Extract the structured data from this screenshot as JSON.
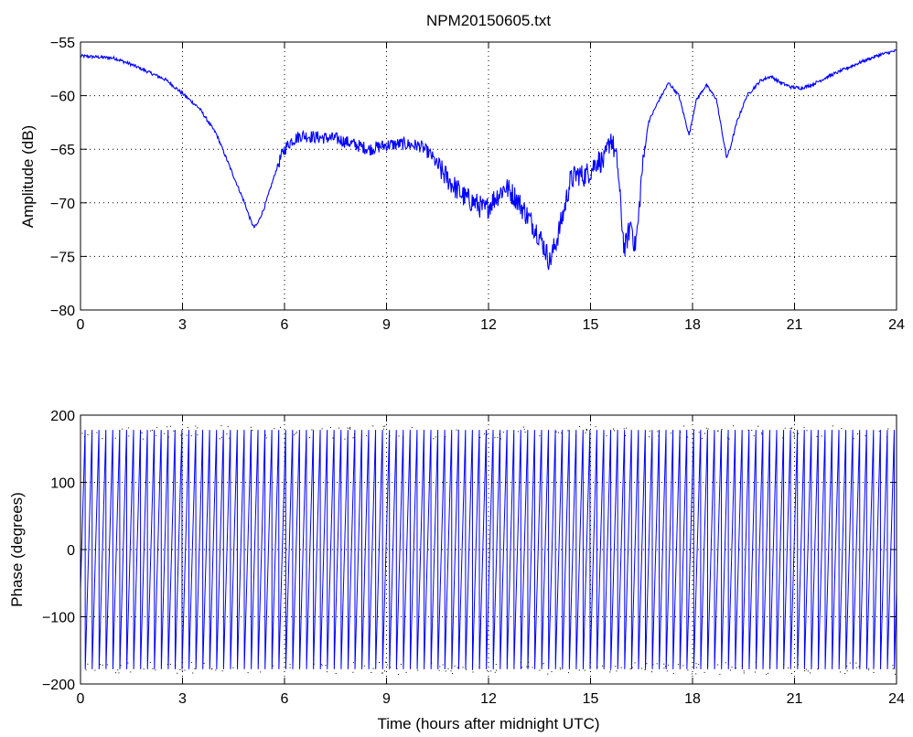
{
  "chart_data": [
    {
      "type": "line",
      "title": "NPM20150605.txt",
      "xlabel": "",
      "ylabel": "Amplitude (dB)",
      "xlim": [
        0,
        24
      ],
      "ylim": [
        -80,
        -55
      ],
      "xticks": [
        0,
        3,
        6,
        9,
        12,
        15,
        18,
        21,
        24
      ],
      "yticks": [
        -80,
        -75,
        -70,
        -65,
        -60,
        -55
      ],
      "xtick_labels": [
        "0",
        "3",
        "6",
        "9",
        "12",
        "15",
        "18",
        "21",
        "24"
      ],
      "ytick_labels": [
        "−80",
        "−75",
        "−70",
        "−65",
        "−60",
        "−55"
      ],
      "grid": true,
      "color": "#0000ff",
      "series": [
        {
          "x": [
            0,
            0.5,
            1,
            1.5,
            2,
            2.5,
            3,
            3.5,
            4,
            4.5,
            4.8,
            5.0,
            5.1,
            5.2,
            5.4,
            5.6,
            5.8,
            6.0,
            6.2,
            6.5,
            7.0,
            7.5,
            8.0,
            8.5,
            9.0,
            9.5,
            10.0,
            10.3,
            10.6,
            11.0,
            11.3,
            11.6,
            11.9,
            12.2,
            12.5,
            12.8,
            13.1,
            13.4,
            13.6,
            13.8,
            14.0,
            14.2,
            14.4,
            14.6,
            14.8,
            15.0,
            15.2,
            15.4,
            15.6,
            15.8,
            15.9,
            16.0,
            16.1,
            16.2,
            16.3,
            16.4,
            16.5,
            16.7,
            17.0,
            17.3,
            17.6,
            17.9,
            18.1,
            18.4,
            18.7,
            19.0,
            19.1,
            19.3,
            19.6,
            20.0,
            20.3,
            20.6,
            20.9,
            21.2,
            21.5,
            22.0,
            22.5,
            23.0,
            23.5,
            24.0
          ],
          "y": [
            -56.3,
            -56.4,
            -56.5,
            -57.1,
            -57.8,
            -58.5,
            -59.8,
            -61.2,
            -63.6,
            -67.5,
            -69.8,
            -71.6,
            -72.3,
            -72.0,
            -70.5,
            -68.5,
            -66.5,
            -65.0,
            -64.2,
            -63.7,
            -63.9,
            -64.0,
            -64.5,
            -65.0,
            -64.6,
            -64.5,
            -64.7,
            -65.5,
            -67.0,
            -68.5,
            -69.5,
            -70.0,
            -70.7,
            -69.5,
            -68.5,
            -69.5,
            -71.0,
            -72.5,
            -73.8,
            -75.5,
            -73.5,
            -71.0,
            -68.0,
            -67.3,
            -67.5,
            -67.0,
            -66.0,
            -66.2,
            -63.8,
            -66.5,
            -71.0,
            -74.5,
            -73.0,
            -71.8,
            -74.2,
            -72.0,
            -67.5,
            -62.5,
            -60.5,
            -58.8,
            -60.0,
            -63.7,
            -60.5,
            -59.0,
            -60.3,
            -65.8,
            -65.0,
            -62.5,
            -60.0,
            -58.6,
            -58.2,
            -58.8,
            -59.2,
            -59.3,
            -59.0,
            -58.2,
            -57.5,
            -56.8,
            -56.2,
            -55.8
          ]
        }
      ]
    },
    {
      "type": "line",
      "title": "",
      "xlabel": "Time (hours after midnight UTC)",
      "ylabel": "Phase (degrees)",
      "xlim": [
        0,
        24
      ],
      "ylim": [
        -200,
        200
      ],
      "xticks": [
        0,
        3,
        6,
        9,
        12,
        15,
        18,
        21,
        24
      ],
      "yticks": [
        -200,
        -100,
        0,
        100,
        200
      ],
      "xtick_labels": [
        "0",
        "3",
        "6",
        "9",
        "12",
        "15",
        "18",
        "21",
        "24"
      ],
      "ytick_labels": [
        "−200",
        "−100",
        "0",
        "100",
        "200"
      ],
      "grid": true,
      "color": "#0000ff",
      "phase_wrap": {
        "cycles": 118,
        "min": -178,
        "max": 178,
        "start_phase": -60,
        "direction": "increasing"
      }
    }
  ]
}
